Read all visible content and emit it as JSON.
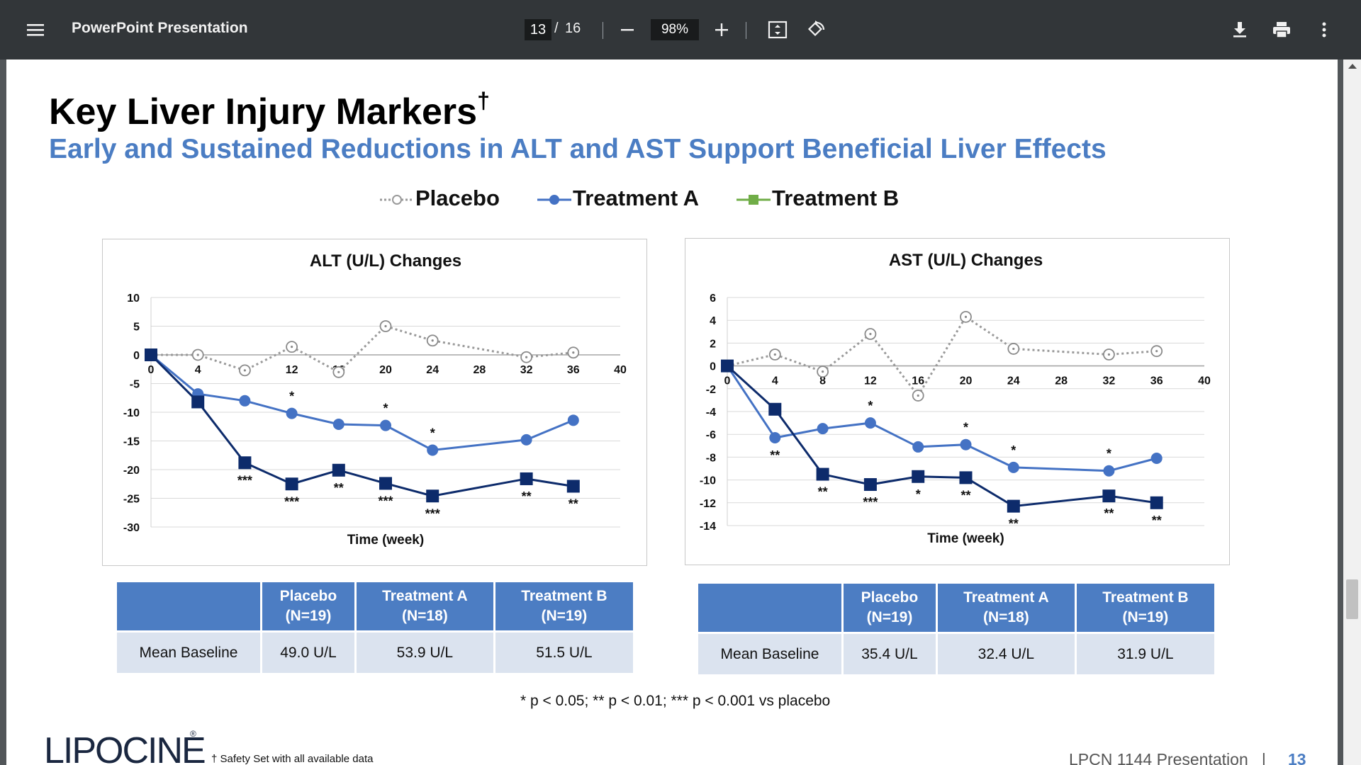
{
  "toolbar": {
    "title": "PowerPoint Presentation",
    "page_current": "13",
    "page_separator": "/",
    "page_total": "16",
    "zoom": "98%",
    "icons": [
      "menu-icon",
      "zoom-out-icon",
      "zoom-in-icon",
      "fit-page-icon",
      "rotate-icon",
      "download-icon",
      "print-icon",
      "more-options-icon"
    ]
  },
  "slide": {
    "title": "Key Liver Injury Markers",
    "title_mark": "†",
    "subtitle": "Early and Sustained Reductions in ALT and AST Support Beneficial Liver Effects",
    "legend": [
      "Placebo",
      "Treatment A",
      "Treatment B"
    ],
    "footnote": "* p < 0.05; ** p < 0.01; *** p < 0.001 vs placebo",
    "logo": "LIPOCINE",
    "logo_tm": "®",
    "safety_note": "† Safety Set with all available data",
    "presentation_label": "LPCN 1144 Presentation",
    "presentation_sep": "|",
    "page_number": "13",
    "colors": {
      "placebo": "#9a9a9a",
      "treatment_a": "#4472c4",
      "treatment_b": "#0d2b6b",
      "accent": "#4b7dc3",
      "header_fill": "#4c7dc3",
      "row_fill": "#dbe3ef"
    }
  },
  "tables": [
    {
      "headers": [
        "",
        "Placebo\n(N=19)",
        "Treatment A\n(N=18)",
        "Treatment B\n(N=19)"
      ],
      "row_label": "Mean Baseline",
      "values": [
        "49.0 U/L",
        "53.9 U/L",
        "51.5 U/L"
      ]
    },
    {
      "headers": [
        "",
        "Placebo\n(N=19)",
        "Treatment A\n(N=18)",
        "Treatment B\n(N=19)"
      ],
      "row_label": "Mean Baseline",
      "values": [
        "35.4 U/L",
        "32.4 U/L",
        "31.9 U/L"
      ]
    }
  ],
  "chart_data": [
    {
      "type": "line",
      "title": "ALT (U/L) Changes",
      "xlabel": "Time (week)",
      "ylabel": "",
      "xlim": [
        0,
        40
      ],
      "ylim": [
        -30,
        10
      ],
      "x_ticks": [
        0,
        4,
        8,
        12,
        16,
        20,
        24,
        28,
        32,
        36,
        40
      ],
      "y_ticks": [
        10,
        5,
        0,
        -5,
        -10,
        -15,
        -20,
        -25,
        -30
      ],
      "grid": true,
      "series": [
        {
          "name": "Placebo",
          "x": [
            0,
            4,
            8,
            12,
            16,
            20,
            24,
            32,
            36
          ],
          "y": [
            0,
            0,
            -2.7,
            1.4,
            -3,
            5,
            2.5,
            -0.4,
            0.4
          ]
        },
        {
          "name": "Treatment A",
          "x": [
            0,
            4,
            8,
            12,
            16,
            20,
            24,
            32,
            36
          ],
          "y": [
            0,
            -6.8,
            -8,
            -10.2,
            -12.1,
            -12.3,
            -16.6,
            -14.8,
            -11.4
          ],
          "sig": [
            "",
            "",
            "",
            "*",
            "",
            "*",
            "*",
            "",
            ""
          ]
        },
        {
          "name": "Treatment B",
          "x": [
            0,
            4,
            8,
            12,
            16,
            20,
            24,
            32,
            36
          ],
          "y": [
            0,
            -8.2,
            -18.8,
            -22.5,
            -20.1,
            -22.4,
            -24.6,
            -21.6,
            -22.9
          ],
          "sig": [
            "",
            "",
            "***",
            "***",
            "**",
            "***",
            "***",
            "**",
            "**"
          ]
        }
      ]
    },
    {
      "type": "line",
      "title": "AST (U/L) Changes",
      "xlabel": "Time (week)",
      "ylabel": "",
      "xlim": [
        0,
        40
      ],
      "ylim": [
        -14,
        6
      ],
      "x_ticks": [
        0,
        4,
        8,
        12,
        16,
        20,
        24,
        28,
        32,
        36,
        40
      ],
      "y_ticks": [
        6,
        4,
        2,
        0,
        -2,
        -4,
        -6,
        -8,
        -10,
        -12,
        -14
      ],
      "grid": true,
      "series": [
        {
          "name": "Placebo",
          "x": [
            0,
            4,
            8,
            12,
            16,
            20,
            24,
            32,
            36
          ],
          "y": [
            0,
            1,
            -0.5,
            2.8,
            -2.6,
            4.3,
            1.5,
            1,
            1.3
          ]
        },
        {
          "name": "Treatment A",
          "x": [
            0,
            4,
            8,
            12,
            16,
            20,
            24,
            32,
            36
          ],
          "y": [
            0,
            -6.3,
            -5.5,
            -5,
            -7.1,
            -6.9,
            -8.9,
            -9.2,
            -8.1
          ],
          "sig": [
            "",
            "**",
            "",
            "*",
            "",
            "*",
            "*",
            "*",
            ""
          ]
        },
        {
          "name": "Treatment B",
          "x": [
            0,
            4,
            8,
            12,
            16,
            20,
            24,
            32,
            36
          ],
          "y": [
            0,
            -3.8,
            -9.5,
            -10.4,
            -9.7,
            -9.8,
            -12.3,
            -11.4,
            -12
          ],
          "sig": [
            "",
            "",
            "**",
            "***",
            "*",
            "**",
            "**",
            "**",
            "**"
          ]
        }
      ]
    }
  ]
}
